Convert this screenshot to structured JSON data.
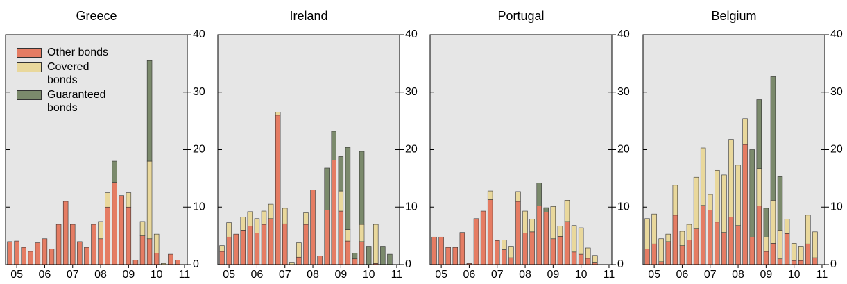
{
  "chart_data": [
    {
      "type": "bar",
      "stacked": true,
      "title": "Greece",
      "legend": "upper left",
      "x": [
        2004.75,
        2005,
        2005.25,
        2005.5,
        2005.75,
        2006,
        2006.25,
        2006.5,
        2006.75,
        2007,
        2007.25,
        2007.5,
        2007.75,
        2008,
        2008.25,
        2008.5,
        2008.75,
        2009,
        2009.25,
        2009.5,
        2009.75,
        2010,
        2010.25,
        2010.5,
        2010.75
      ],
      "xlim": [
        2004.6,
        2011.1
      ],
      "xticks": [
        {
          "value": 2005,
          "label": "05"
        },
        {
          "value": 2006,
          "label": "06"
        },
        {
          "value": 2007,
          "label": "07"
        },
        {
          "value": 2008,
          "label": "08"
        },
        {
          "value": 2009,
          "label": "09"
        },
        {
          "value": 2010,
          "label": "10"
        },
        {
          "value": 2011,
          "label": "11"
        }
      ],
      "ylim": [
        0,
        40
      ],
      "yticks": [
        0,
        10,
        20,
        30,
        40
      ],
      "series": [
        {
          "name": "Other bonds",
          "color": "#e57c63",
          "values": [
            4,
            4.1,
            3,
            2.3,
            3.8,
            4.5,
            2.7,
            7,
            11,
            7,
            4,
            3,
            7,
            4.5,
            10,
            14.3,
            12,
            10,
            0.8,
            5,
            4.5,
            2,
            0,
            1.8,
            0.8
          ]
        },
        {
          "name": "Covered bonds",
          "color": "#e9d89c",
          "values": [
            0,
            0,
            0,
            0,
            0,
            0,
            0,
            0,
            0,
            0,
            0,
            0,
            0,
            3,
            2.5,
            0,
            0,
            2.5,
            0,
            2.5,
            13.5,
            3.3,
            0.2,
            0,
            0
          ]
        },
        {
          "name": "Guaranteed bonds",
          "color": "#7b8a6c",
          "values": [
            0,
            0,
            0,
            0,
            0,
            0,
            0,
            0,
            0,
            0,
            0,
            0,
            0,
            0,
            0,
            3.7,
            0,
            0,
            0,
            0,
            17.5,
            0,
            0,
            0,
            0
          ]
        }
      ]
    },
    {
      "type": "bar",
      "stacked": true,
      "title": "Ireland",
      "x": [
        2004.75,
        2005,
        2005.25,
        2005.5,
        2005.75,
        2006,
        2006.25,
        2006.5,
        2006.75,
        2007,
        2007.25,
        2007.5,
        2007.75,
        2008,
        2008.25,
        2008.5,
        2008.75,
        2009,
        2009.25,
        2009.5,
        2009.75,
        2010,
        2010.25,
        2010.5,
        2010.75
      ],
      "xlim": [
        2004.6,
        2011.1
      ],
      "xticks": [
        {
          "value": 2005,
          "label": "05"
        },
        {
          "value": 2006,
          "label": "06"
        },
        {
          "value": 2007,
          "label": "07"
        },
        {
          "value": 2008,
          "label": "08"
        },
        {
          "value": 2009,
          "label": "09"
        },
        {
          "value": 2010,
          "label": "10"
        },
        {
          "value": 2011,
          "label": "11"
        }
      ],
      "ylim": [
        0,
        40
      ],
      "yticks": [
        0,
        10,
        20,
        30,
        40
      ],
      "series": [
        {
          "name": "Other bonds",
          "color": "#e57c63",
          "values": [
            2.3,
            4.8,
            5.3,
            6,
            6.7,
            5.5,
            7,
            8,
            26,
            7.1,
            0,
            1.3,
            7,
            13,
            1.5,
            9.5,
            18.2,
            9.3,
            4.1,
            1,
            4,
            0,
            0.2,
            0,
            0
          ]
        },
        {
          "name": "Covered bonds",
          "color": "#e9d89c",
          "values": [
            1,
            2.5,
            0,
            2.3,
            2.5,
            2.5,
            2.3,
            2.5,
            0.5,
            2.7,
            0.3,
            2.5,
            2,
            0,
            0,
            0,
            0,
            3.5,
            2,
            0,
            3,
            0,
            6.8,
            0,
            0
          ]
        },
        {
          "name": "Guaranteed bonds",
          "color": "#7b8a6c",
          "values": [
            0,
            0,
            0,
            0,
            0,
            0,
            0,
            0,
            0,
            0,
            0,
            0,
            0,
            0,
            0,
            7.3,
            5,
            6,
            14.3,
            1,
            12.7,
            3.2,
            0,
            3.2,
            1.8
          ]
        }
      ]
    },
    {
      "type": "bar",
      "stacked": true,
      "title": "Portugal",
      "x": [
        2004.75,
        2005,
        2005.25,
        2005.5,
        2005.75,
        2006,
        2006.25,
        2006.5,
        2006.75,
        2007,
        2007.25,
        2007.5,
        2007.75,
        2008,
        2008.25,
        2008.5,
        2008.75,
        2009,
        2009.25,
        2009.5,
        2009.75,
        2010,
        2010.25,
        2010.5,
        2010.75
      ],
      "xlim": [
        2004.6,
        2011.1
      ],
      "xticks": [
        {
          "value": 2005,
          "label": "05"
        },
        {
          "value": 2006,
          "label": "06"
        },
        {
          "value": 2007,
          "label": "07"
        },
        {
          "value": 2008,
          "label": "08"
        },
        {
          "value": 2009,
          "label": "09"
        },
        {
          "value": 2010,
          "label": "10"
        },
        {
          "value": 2011,
          "label": "11"
        }
      ],
      "ylim": [
        0,
        40
      ],
      "yticks": [
        0,
        10,
        20,
        30,
        40
      ],
      "series": [
        {
          "name": "Other bonds",
          "color": "#e57c63",
          "values": [
            4.8,
            4.8,
            3,
            3,
            5.6,
            0.2,
            8,
            9.3,
            11.3,
            4.2,
            2.6,
            1.2,
            11,
            5.5,
            5.7,
            10.2,
            9.1,
            4.5,
            4.9,
            7.5,
            2.2,
            1.8,
            1.1,
            0.3,
            0
          ]
        },
        {
          "name": "Covered bonds",
          "color": "#e9d89c",
          "values": [
            0,
            0,
            0,
            0,
            0,
            0,
            0,
            0,
            1.5,
            0,
            1.7,
            2,
            1.7,
            3.8,
            2.2,
            0,
            0,
            5.6,
            1.8,
            3.7,
            4.6,
            4.6,
            1.8,
            1.3,
            0
          ]
        },
        {
          "name": "Guaranteed bonds",
          "color": "#7b8a6c",
          "values": [
            0,
            0,
            0,
            0,
            0,
            0,
            0,
            0,
            0,
            0,
            0,
            0,
            0,
            0,
            0,
            4,
            0.8,
            0,
            0,
            0,
            0,
            0,
            0,
            0,
            0
          ]
        }
      ]
    },
    {
      "type": "bar",
      "stacked": true,
      "title": "Belgium",
      "x": [
        2004.75,
        2005,
        2005.25,
        2005.5,
        2005.75,
        2006,
        2006.25,
        2006.5,
        2006.75,
        2007,
        2007.25,
        2007.5,
        2007.75,
        2008,
        2008.25,
        2008.5,
        2008.75,
        2009,
        2009.25,
        2009.5,
        2009.75,
        2010,
        2010.25,
        2010.5,
        2010.75
      ],
      "xlim": [
        2004.6,
        2011.1
      ],
      "xticks": [
        {
          "value": 2005,
          "label": "05"
        },
        {
          "value": 2006,
          "label": "06"
        },
        {
          "value": 2007,
          "label": "07"
        },
        {
          "value": 2008,
          "label": "08"
        },
        {
          "value": 2009,
          "label": "09"
        },
        {
          "value": 2010,
          "label": "10"
        },
        {
          "value": 2011,
          "label": "11"
        }
      ],
      "ylim": [
        0,
        40
      ],
      "yticks": [
        0,
        10,
        20,
        30,
        40
      ],
      "series": [
        {
          "name": "Other bonds",
          "color": "#e57c63",
          "values": [
            2.7,
            3.6,
            0.5,
            4,
            8.6,
            3.3,
            4.3,
            6.2,
            10.3,
            9.5,
            7.4,
            5.6,
            8.3,
            6.8,
            20.9,
            4.8,
            10.2,
            2.3,
            3.7,
            1,
            5.4,
            0.7,
            0.7,
            3.6,
            1.2
          ]
        },
        {
          "name": "Covered bonds",
          "color": "#e9d89c",
          "values": [
            5.3,
            5.2,
            4,
            1.3,
            5.2,
            2.5,
            2.7,
            9,
            10,
            2.7,
            9,
            10,
            13.5,
            10.5,
            4.5,
            0,
            6.5,
            2.5,
            7.5,
            5,
            2.5,
            3,
            2.5,
            5,
            4.5
          ]
        },
        {
          "name": "Guaranteed bonds",
          "color": "#7b8a6c",
          "values": [
            0,
            0,
            0,
            0,
            0,
            0,
            0,
            0,
            0,
            0,
            0,
            0,
            0,
            0,
            0,
            15.2,
            12,
            5,
            21.5,
            9.3,
            0,
            0,
            0,
            0,
            0
          ]
        }
      ]
    }
  ]
}
